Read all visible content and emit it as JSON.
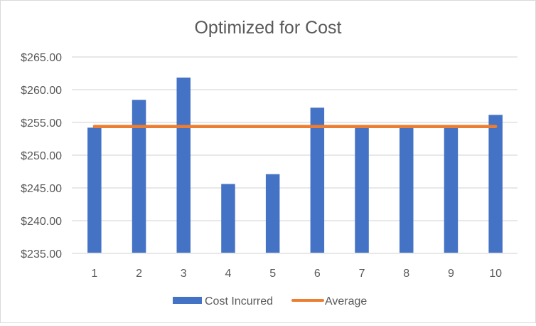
{
  "chart_data": {
    "type": "bar",
    "title": "Optimized for Cost",
    "categories": [
      "1",
      "2",
      "3",
      "4",
      "5",
      "6",
      "7",
      "8",
      "9",
      "10"
    ],
    "series": [
      {
        "name": "Cost Incurred",
        "type": "bar",
        "color": "#4472C4",
        "values": [
          254.2,
          258.45,
          261.85,
          245.6,
          247.1,
          257.25,
          254.4,
          254.4,
          254.4,
          256.15
        ]
      },
      {
        "name": "Average",
        "type": "line",
        "color": "#ED7D31",
        "values": [
          254.38,
          254.38,
          254.38,
          254.38,
          254.38,
          254.38,
          254.38,
          254.38,
          254.38,
          254.38
        ]
      }
    ],
    "ylim": [
      235,
      265
    ],
    "yticks": [
      235,
      240,
      245,
      250,
      255,
      260,
      265
    ],
    "ytick_labels": [
      "$235.00",
      "$240.00",
      "$245.00",
      "$250.00",
      "$255.00",
      "$260.00",
      "$265.00"
    ],
    "grid": true,
    "legend": "bottom"
  }
}
